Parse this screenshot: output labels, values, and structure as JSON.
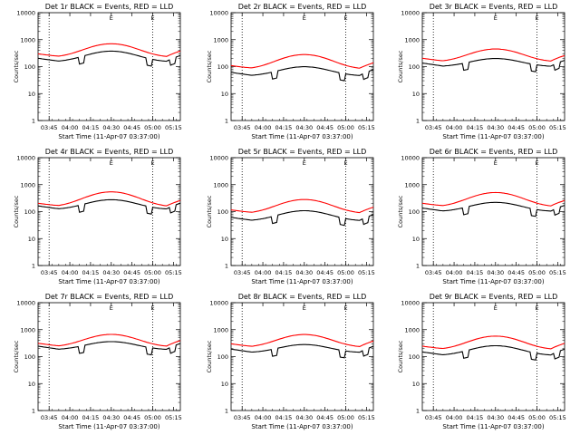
{
  "chart_data": [
    {
      "type": "line",
      "title": "Det 1r BLACK = Events, RED = LLD",
      "label": "1",
      "series": [
        {
          "name": "Events",
          "color": "#000000",
          "base": 150,
          "amp": 2.5
        },
        {
          "name": "LLD",
          "color": "#ff0000",
          "base": 220,
          "amp": 3.2
        }
      ],
      "transitions": [
        {
          "x": "04:30",
          "label": "E"
        },
        {
          "x": "05:00",
          "label": "E"
        }
      ]
    },
    {
      "type": "line",
      "title": "Det 2r BLACK = Events, RED = LLD",
      "label": "2",
      "series": [
        {
          "name": "Events",
          "color": "#000000",
          "base": 45,
          "amp": 2.2
        },
        {
          "name": "LLD",
          "color": "#ff0000",
          "base": 80,
          "amp": 3.5
        }
      ],
      "transitions": [
        {
          "x": "04:30",
          "label": "E"
        },
        {
          "x": "05:00",
          "label": "E"
        }
      ]
    },
    {
      "type": "line",
      "title": "Det 3r BLACK = Events, RED = LLD",
      "label": "3",
      "series": [
        {
          "name": "Events",
          "color": "#000000",
          "base": 100,
          "amp": 2.0
        },
        {
          "name": "LLD",
          "color": "#ff0000",
          "base": 150,
          "amp": 3.0
        }
      ],
      "transitions": [
        {
          "x": "04:30",
          "label": "E"
        },
        {
          "x": "05:00",
          "label": "E"
        }
      ]
    },
    {
      "type": "line",
      "title": "Det 4r BLACK = Events, RED = LLD",
      "label": "4",
      "series": [
        {
          "name": "Events",
          "color": "#000000",
          "base": 120,
          "amp": 2.3
        },
        {
          "name": "LLD",
          "color": "#ff0000",
          "base": 150,
          "amp": 3.6
        }
      ],
      "transitions": [
        {
          "x": "04:30",
          "label": "E"
        },
        {
          "x": "05:00",
          "label": "E"
        }
      ]
    },
    {
      "type": "line",
      "title": "Det 5r BLACK = Events, RED = LLD",
      "label": "5",
      "series": [
        {
          "name": "Events",
          "color": "#000000",
          "base": 45,
          "amp": 2.4
        },
        {
          "name": "LLD",
          "color": "#ff0000",
          "base": 85,
          "amp": 3.3
        }
      ],
      "transitions": [
        {
          "x": "04:30",
          "label": "E"
        },
        {
          "x": "05:00",
          "label": "E"
        }
      ]
    },
    {
      "type": "line",
      "title": "Det 6r BLACK = Events, RED = LLD",
      "label": "6",
      "series": [
        {
          "name": "Events",
          "color": "#000000",
          "base": 100,
          "amp": 2.2
        },
        {
          "name": "LLD",
          "color": "#ff0000",
          "base": 150,
          "amp": 3.4
        }
      ],
      "transitions": [
        {
          "x": "04:30",
          "label": "E"
        },
        {
          "x": "05:00",
          "label": "E"
        }
      ]
    },
    {
      "type": "line",
      "title": "Det 7r BLACK = Events, RED = LLD",
      "label": "7",
      "series": [
        {
          "name": "Events",
          "color": "#000000",
          "base": 180,
          "amp": 2.0
        },
        {
          "name": "LLD",
          "color": "#ff0000",
          "base": 230,
          "amp": 2.9
        }
      ],
      "transitions": [
        {
          "x": "04:30",
          "label": "E"
        },
        {
          "x": "05:00",
          "label": "E"
        }
      ]
    },
    {
      "type": "line",
      "title": "Det 8r BLACK = Events, RED = LLD",
      "label": "8",
      "series": [
        {
          "name": "Events",
          "color": "#000000",
          "base": 140,
          "amp": 2.0
        },
        {
          "name": "LLD",
          "color": "#ff0000",
          "base": 220,
          "amp": 3.0
        }
      ],
      "transitions": [
        {
          "x": "04:30",
          "label": "E"
        },
        {
          "x": "05:00",
          "label": "E"
        }
      ]
    },
    {
      "type": "line",
      "title": "Det 9r BLACK = Events, RED = LLD",
      "label": "9",
      "series": [
        {
          "name": "Events",
          "color": "#000000",
          "base": 110,
          "amp": 2.3
        },
        {
          "name": "LLD",
          "color": "#ff0000",
          "base": 180,
          "amp": 3.2
        }
      ],
      "transitions": [
        {
          "x": "04:30",
          "label": "E"
        },
        {
          "x": "05:00",
          "label": "E"
        }
      ]
    }
  ],
  "shared": {
    "xlabel": "Start Time (11-Apr-07 03:37:00)",
    "ylabel": "Counts/sec",
    "x_ticks": [
      "03:45",
      "04:00",
      "04:15",
      "04:30",
      "04:45",
      "05:00",
      "05:15"
    ],
    "x_range_min": [
      0,
      103
    ],
    "y_ticks": [
      "1",
      "10",
      "100",
      "1000",
      "10000"
    ],
    "y_range": [
      1,
      10000
    ],
    "y_scale": "log",
    "vline_min": [
      8,
      83
    ]
  }
}
